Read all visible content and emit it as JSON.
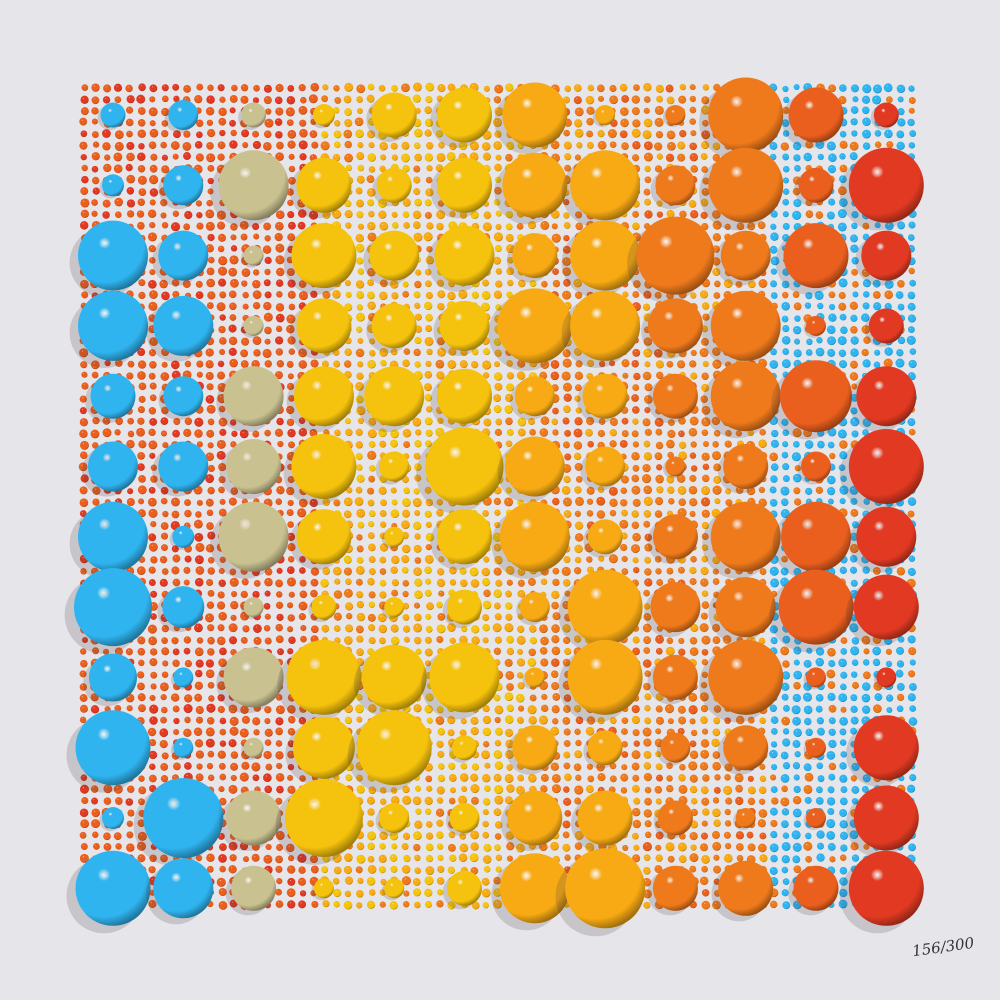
{
  "artwork": {
    "edition_number": "156/300",
    "palette": {
      "blue": "#2fb4ef",
      "khaki": "#c9c190",
      "yellow": "#f5c20d",
      "amber": "#f7aa14",
      "orange": "#ef7a1c",
      "deep_orange": "#ea5f1e",
      "red": "#e23a22",
      "background": "#e6e5ea"
    }
  }
}
